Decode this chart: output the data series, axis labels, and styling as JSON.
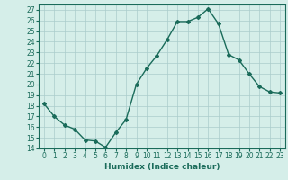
{
  "x": [
    0,
    1,
    2,
    3,
    4,
    5,
    6,
    7,
    8,
    9,
    10,
    11,
    12,
    13,
    14,
    15,
    16,
    17,
    18,
    19,
    20,
    21,
    22,
    23
  ],
  "y": [
    18.2,
    17.0,
    16.2,
    15.8,
    14.8,
    14.7,
    14.1,
    15.5,
    16.7,
    20.0,
    21.5,
    22.7,
    24.2,
    25.9,
    25.9,
    26.3,
    27.1,
    25.7,
    22.8,
    22.3,
    21.0,
    19.8,
    19.3,
    19.2
  ],
  "line_color": "#1a6b5a",
  "marker": "D",
  "marker_size": 2,
  "bg_color": "#d5eee9",
  "grid_color": "#aacccc",
  "xlabel": "Humidex (Indice chaleur)",
  "xlim": [
    -0.5,
    23.5
  ],
  "ylim": [
    14,
    27.5
  ],
  "yticks": [
    14,
    15,
    16,
    17,
    18,
    19,
    20,
    21,
    22,
    23,
    24,
    25,
    26,
    27
  ],
  "xticks": [
    0,
    1,
    2,
    3,
    4,
    5,
    6,
    7,
    8,
    9,
    10,
    11,
    12,
    13,
    14,
    15,
    16,
    17,
    18,
    19,
    20,
    21,
    22,
    23
  ],
  "label_fontsize": 6.5,
  "tick_fontsize": 5.5
}
